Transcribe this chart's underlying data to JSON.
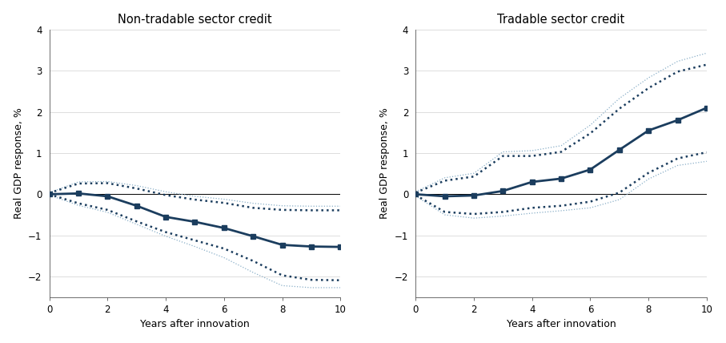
{
  "left_title": "Non-tradable sector credit",
  "right_title": "Tradable sector credit",
  "xlabel": "Years after innovation",
  "ylabel": "Real GDP response, %",
  "x": [
    0,
    1,
    2,
    3,
    4,
    5,
    6,
    7,
    8,
    9,
    10
  ],
  "left_main": [
    0.0,
    0.02,
    -0.05,
    -0.28,
    -0.55,
    -0.67,
    -0.82,
    -1.02,
    -1.23,
    -1.27,
    -1.28
  ],
  "left_ci_upper_inner": [
    0.03,
    0.26,
    0.27,
    0.14,
    -0.02,
    -0.13,
    -0.21,
    -0.33,
    -0.38,
    -0.39,
    -0.39
  ],
  "left_ci_lower_inner": [
    0.0,
    -0.22,
    -0.38,
    -0.66,
    -0.92,
    -1.12,
    -1.32,
    -1.62,
    -1.97,
    -2.08,
    -2.09
  ],
  "left_ci_upper_outer": [
    0.04,
    0.3,
    0.31,
    0.21,
    0.06,
    -0.05,
    -0.12,
    -0.22,
    -0.28,
    -0.29,
    -0.29
  ],
  "left_ci_lower_outer": [
    -0.02,
    -0.27,
    -0.44,
    -0.73,
    -1.02,
    -1.27,
    -1.54,
    -1.9,
    -2.22,
    -2.27,
    -2.27
  ],
  "right_main": [
    0.0,
    -0.05,
    -0.03,
    0.08,
    0.3,
    0.38,
    0.6,
    1.08,
    1.55,
    1.8,
    2.1
  ],
  "right_ci_upper_inner": [
    0.04,
    0.33,
    0.43,
    0.93,
    0.93,
    1.03,
    1.48,
    2.08,
    2.58,
    2.98,
    3.15
  ],
  "right_ci_lower_inner": [
    -0.02,
    -0.43,
    -0.48,
    -0.43,
    -0.33,
    -0.28,
    -0.18,
    0.04,
    0.52,
    0.87,
    1.02
  ],
  "right_ci_upper_outer": [
    0.06,
    0.4,
    0.51,
    1.03,
    1.06,
    1.18,
    1.68,
    2.33,
    2.83,
    3.23,
    3.43
  ],
  "right_ci_lower_outer": [
    -0.04,
    -0.5,
    -0.58,
    -0.53,
    -0.46,
    -0.4,
    -0.33,
    -0.13,
    0.37,
    0.7,
    0.8
  ],
  "ylim": [
    -2.5,
    4.0
  ],
  "yticks": [
    -2,
    -1,
    0,
    1,
    2,
    3,
    4
  ],
  "xticks": [
    0,
    2,
    4,
    6,
    8,
    10
  ],
  "line_color": "#1b3d5e",
  "ci_inner_color": "#1b3d5e",
  "ci_outer_color": "#8aafc8",
  "background_color": "#ffffff",
  "grid_color": "#d0d0d0"
}
